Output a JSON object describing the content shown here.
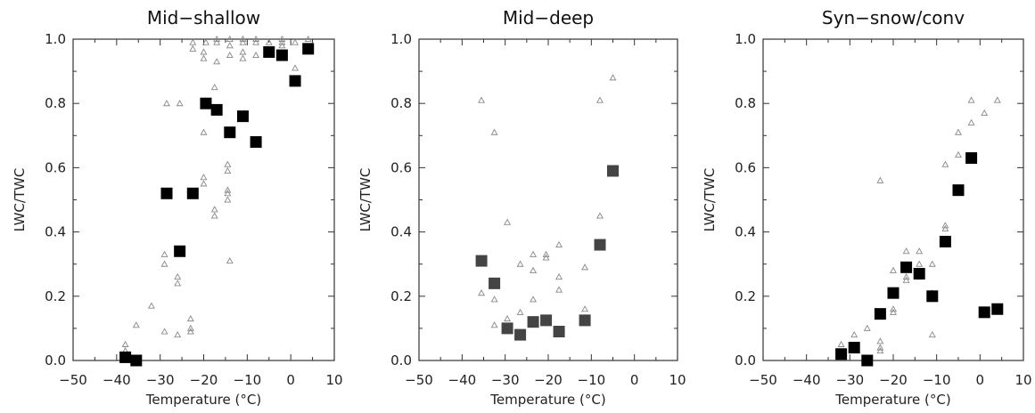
{
  "chart_data": [
    {
      "type": "scatter",
      "title": "Mid−shallow",
      "xlabel": "Temperature (°C)",
      "ylabel": "LWC/TWC",
      "xlim": [
        -50,
        10
      ],
      "ylim": [
        0,
        1
      ],
      "xticks": [
        "−50",
        "−40",
        "−30",
        "−20",
        "−10",
        "0",
        "10"
      ],
      "yticks": [
        "0.0",
        "0.2",
        "0.4",
        "0.6",
        "0.8",
        "1.0"
      ],
      "square_color": "#000000",
      "series": [
        {
          "marker": "square",
          "points": [
            [
              -38,
              0.01
            ],
            [
              -35.5,
              0.0
            ],
            [
              -28.5,
              0.52
            ],
            [
              -25.5,
              0.34
            ],
            [
              -22.5,
              0.52
            ],
            [
              -19.5,
              0.8
            ],
            [
              -17,
              0.78
            ],
            [
              -14,
              0.71
            ],
            [
              -11,
              0.76
            ],
            [
              -8,
              0.68
            ],
            [
              -5,
              0.96
            ],
            [
              -2,
              0.95
            ],
            [
              1,
              0.87
            ],
            [
              4,
              0.97
            ]
          ]
        },
        {
          "marker": "triangle",
          "points": [
            [
              -38,
              0.05
            ],
            [
              -38,
              0.03
            ],
            [
              -35.5,
              0.11
            ],
            [
              -32,
              0.17
            ],
            [
              -29,
              0.3
            ],
            [
              -29,
              0.33
            ],
            [
              -29,
              0.09
            ],
            [
              -28.5,
              0.8
            ],
            [
              -26,
              0.26
            ],
            [
              -26,
              0.24
            ],
            [
              -26,
              0.08
            ],
            [
              -25.5,
              0.8
            ],
            [
              -23,
              0.13
            ],
            [
              -23,
              0.1
            ],
            [
              -23,
              0.09
            ],
            [
              -22.5,
              0.99
            ],
            [
              -22.5,
              0.97
            ],
            [
              -20,
              0.57
            ],
            [
              -20,
              0.55
            ],
            [
              -20,
              0.71
            ],
            [
              -20,
              0.94
            ],
            [
              -20,
              0.96
            ],
            [
              -19.5,
              0.99
            ],
            [
              -17.5,
              0.85
            ],
            [
              -17.5,
              0.47
            ],
            [
              -17.5,
              0.45
            ],
            [
              -17,
              0.93
            ],
            [
              -17,
              0.99
            ],
            [
              -17,
              1.0
            ],
            [
              -14.5,
              0.61
            ],
            [
              -14.5,
              0.59
            ],
            [
              -14.5,
              0.53
            ],
            [
              -14.5,
              0.52
            ],
            [
              -14.5,
              0.5
            ],
            [
              -14,
              0.31
            ],
            [
              -14,
              0.95
            ],
            [
              -14,
              0.98
            ],
            [
              -14,
              1.0
            ],
            [
              -11,
              0.94
            ],
            [
              -11,
              0.96
            ],
            [
              -11,
              0.99
            ],
            [
              -11,
              1.0
            ],
            [
              -8,
              0.95
            ],
            [
              -8,
              0.99
            ],
            [
              -8,
              1.0
            ],
            [
              -5,
              0.99
            ],
            [
              -2,
              0.98
            ],
            [
              -2,
              0.99
            ],
            [
              -2,
              1.0
            ],
            [
              1,
              0.91
            ],
            [
              1,
              0.99
            ],
            [
              4,
              1.0
            ]
          ]
        }
      ]
    },
    {
      "type": "scatter",
      "title": "Mid−deep",
      "xlabel": "Temperature (°C)",
      "ylabel": "LWC/TWC",
      "xlim": [
        -50,
        10
      ],
      "ylim": [
        0,
        1
      ],
      "xticks": [
        "−50",
        "−40",
        "−30",
        "−20",
        "−10",
        "0",
        "10"
      ],
      "yticks": [
        "0.0",
        "0.2",
        "0.4",
        "0.6",
        "0.8",
        "1.0"
      ],
      "square_color": "#444444",
      "series": [
        {
          "marker": "square",
          "points": [
            [
              -35.5,
              0.31
            ],
            [
              -32.5,
              0.24
            ],
            [
              -29.5,
              0.1
            ],
            [
              -26.5,
              0.08
            ],
            [
              -23.5,
              0.12
            ],
            [
              -20.5,
              0.125
            ],
            [
              -17.5,
              0.09
            ],
            [
              -11.5,
              0.125
            ],
            [
              -8,
              0.36
            ],
            [
              -5,
              0.59
            ]
          ]
        },
        {
          "marker": "triangle",
          "points": [
            [
              -35.5,
              0.81
            ],
            [
              -35.5,
              0.21
            ],
            [
              -32.5,
              0.71
            ],
            [
              -32.5,
              0.19
            ],
            [
              -32.5,
              0.11
            ],
            [
              -29.5,
              0.43
            ],
            [
              -29.5,
              0.13
            ],
            [
              -26.5,
              0.3
            ],
            [
              -26.5,
              0.15
            ],
            [
              -23.5,
              0.33
            ],
            [
              -23.5,
              0.28
            ],
            [
              -23.5,
              0.19
            ],
            [
              -20.5,
              0.32
            ],
            [
              -20.5,
              0.33
            ],
            [
              -17.5,
              0.36
            ],
            [
              -17.5,
              0.26
            ],
            [
              -17.5,
              0.22
            ],
            [
              -11.5,
              0.29
            ],
            [
              -11.5,
              0.16
            ],
            [
              -8,
              0.81
            ],
            [
              -8,
              0.45
            ],
            [
              -5,
              0.88
            ]
          ]
        }
      ]
    },
    {
      "type": "scatter",
      "title": "Syn−snow/conv",
      "xlabel": "Temperature (°C)",
      "ylabel": "LWC/TWC",
      "xlim": [
        -50,
        10
      ],
      "ylim": [
        0,
        1
      ],
      "xticks": [
        "−50",
        "−40",
        "−30",
        "−20",
        "−10",
        "0",
        "10"
      ],
      "yticks": [
        "0.0",
        "0.2",
        "0.4",
        "0.6",
        "0.8",
        "1.0"
      ],
      "square_color": "#000000",
      "series": [
        {
          "marker": "square",
          "points": [
            [
              -32,
              0.02
            ],
            [
              -29,
              0.04
            ],
            [
              -26,
              0.0
            ],
            [
              -23,
              0.145
            ],
            [
              -20,
              0.21
            ],
            [
              -17,
              0.29
            ],
            [
              -14,
              0.27
            ],
            [
              -11,
              0.2
            ],
            [
              -8,
              0.37
            ],
            [
              -5,
              0.53
            ],
            [
              -2,
              0.63
            ],
            [
              1,
              0.15
            ],
            [
              4,
              0.16
            ]
          ]
        },
        {
          "marker": "triangle",
          "points": [
            [
              -32,
              0.05
            ],
            [
              -29,
              0.08
            ],
            [
              -26,
              0.1
            ],
            [
              -23,
              0.56
            ],
            [
              -23,
              0.06
            ],
            [
              -23,
              0.04
            ],
            [
              -23,
              0.03
            ],
            [
              -20,
              0.28
            ],
            [
              -20,
              0.16
            ],
            [
              -20,
              0.15
            ],
            [
              -17,
              0.34
            ],
            [
              -17,
              0.25
            ],
            [
              -17,
              0.26
            ],
            [
              -14,
              0.34
            ],
            [
              -14,
              0.3
            ],
            [
              -14,
              0.26
            ],
            [
              -11,
              0.3
            ],
            [
              -11,
              0.21
            ],
            [
              -11,
              0.08
            ],
            [
              -8,
              0.61
            ],
            [
              -8,
              0.42
            ],
            [
              -8,
              0.41
            ],
            [
              -5,
              0.64
            ],
            [
              -5,
              0.71
            ],
            [
              -2,
              0.74
            ],
            [
              -2,
              0.81
            ],
            [
              1,
              0.77
            ],
            [
              4,
              0.81
            ]
          ]
        }
      ]
    }
  ]
}
